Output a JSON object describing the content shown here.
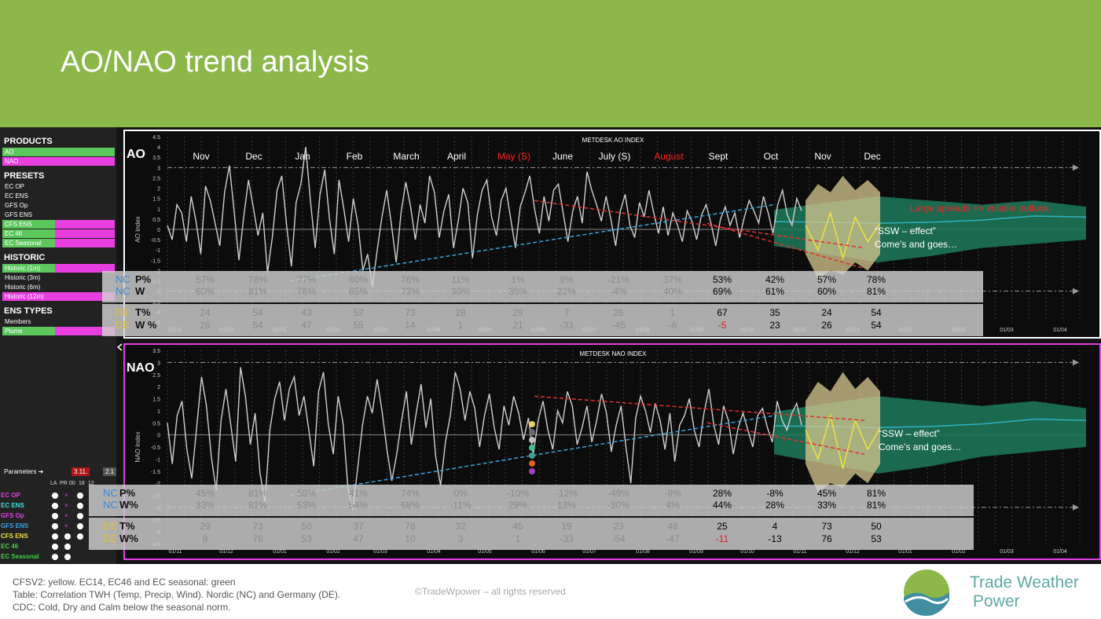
{
  "title": "AO/NAO trend analysis",
  "sidebar": {
    "sections": [
      {
        "label": "PRODUCTS",
        "items": [
          {
            "label": "AO",
            "color": "green"
          },
          {
            "label": "NAO",
            "color": "pink"
          }
        ]
      },
      {
        "label": "PRESETS",
        "items": [
          {
            "label": "EC OP",
            "color": "none"
          },
          {
            "label": "EC ENS",
            "color": "none"
          },
          {
            "label": "GFS Op",
            "color": "none"
          },
          {
            "label": "GFS ENS",
            "color": "none"
          },
          {
            "label": "CFS ENS",
            "color": "green-pink"
          },
          {
            "label": "EC 46",
            "color": "green-pink"
          },
          {
            "label": "EC Seasonal",
            "color": "green-pink"
          }
        ]
      },
      {
        "label": "HISTORIC",
        "items": [
          {
            "label": "Historic (1m)",
            "color": "green-pink"
          },
          {
            "label": "Historic (3m)",
            "color": "none"
          },
          {
            "label": "Historic (6m)",
            "color": "none"
          },
          {
            "label": "Historic (12m)",
            "color": "pink-full"
          }
        ]
      },
      {
        "label": "ENS TYPES",
        "items": [
          {
            "label": "Members",
            "color": "none"
          },
          {
            "label": "Plume",
            "color": "green-pink"
          }
        ]
      }
    ],
    "parameters": {
      "label": "Parameters ➔",
      "date1": "3.11.",
      "date2": "2.1",
      "cols": [
        "LA",
        "PR",
        "00",
        "18",
        "12"
      ],
      "models": [
        {
          "label": "EC OP",
          "color": "#e040e0"
        },
        {
          "label": "EC ENS",
          "color": "#40e0e0"
        },
        {
          "label": "GFS Op",
          "color": "#e040e0"
        },
        {
          "label": "GFS ENS",
          "color": "#40a0e0"
        },
        {
          "label": "CFS ENS",
          "color": "#f0e040"
        },
        {
          "label": "EC 46",
          "color": "#40d040"
        },
        {
          "label": "EC Seasonal",
          "color": "#40d040"
        }
      ]
    }
  },
  "colors": {
    "header": "#8cb84a",
    "line": "#cfcfcf",
    "trend_blue": "#3aa0d8",
    "trend_red": "#e03030",
    "band_green": "#1e7a5a",
    "plume": "#d8c890"
  },
  "chart_data": [
    {
      "type": "line",
      "label": "AO",
      "title": "METDESK AO INDEX",
      "ylabel": "AO Index",
      "ylim": [
        -4.5,
        4.5
      ],
      "yticks": [
        "4.5",
        "4",
        "3.5",
        "3",
        "2.5",
        "2",
        "1.5",
        "1",
        "0.5",
        "0",
        "-0.5",
        "-1",
        "-1.5",
        "-2",
        "-2.5",
        "-3",
        "-3.5",
        "-4",
        "-4.5"
      ],
      "x_ticks": [
        "01/11",
        "01/12",
        "01/01",
        "01/02",
        "01/03",
        "01/04",
        "01/05",
        "01/06",
        "01/07",
        "01/08",
        "01/09",
        "01/10",
        "01/11",
        "01/12",
        "01/01",
        "01/02",
        "01/03",
        "01/04"
      ],
      "months": [
        {
          "label": "Nov",
          "red": false
        },
        {
          "label": "Dec",
          "red": false
        },
        {
          "label": "Jan",
          "red": false
        },
        {
          "label": "Feb",
          "red": false
        },
        {
          "label": "March",
          "red": false
        },
        {
          "label": "April",
          "red": false
        },
        {
          "label": "May (S)",
          "red": true
        },
        {
          "label": "June",
          "red": false
        },
        {
          "label": "July (S)",
          "red": false
        },
        {
          "label": "August",
          "red": true
        },
        {
          "label": "Sept",
          "red": false
        },
        {
          "label": "Oct",
          "red": false
        },
        {
          "label": "Nov",
          "red": false
        },
        {
          "label": "Dec",
          "red": false
        }
      ],
      "series_values": [
        0.2,
        -0.5,
        1.2,
        0.8,
        -0.6,
        1.6,
        0.4,
        -1.2,
        2.1,
        1.4,
        0.3,
        -0.8,
        1.8,
        3.1,
        0.9,
        -1.5,
        0.6,
        2.4,
        1.1,
        -0.3,
        0.8,
        -2.1,
        -0.4,
        1.9,
        2.6,
        0.2,
        -1.8,
        1.3,
        2.2,
        4.0,
        1.4,
        -0.9,
        1.7,
        2.9,
        0.5,
        -1.2,
        2.4,
        1.0,
        -0.6,
        1.5,
        0.2,
        -2.0,
        -1.2,
        -2.8,
        -1.0,
        0.6,
        1.9,
        0.2,
        -1.6,
        0.8,
        2.3,
        1.1,
        -0.5,
        1.2,
        0.3,
        2.6,
        1.8,
        -0.4,
        0.9,
        1.7,
        -0.9,
        0.4,
        2.0,
        1.3,
        -1.4,
        0.7,
        1.9,
        2.4,
        0.6,
        -0.3,
        1.4,
        2.0,
        0.5,
        -0.9,
        1.1,
        1.8,
        2.6,
        1.0,
        -0.2,
        1.6,
        0.4,
        1.9,
        2.2,
        0.8,
        -0.6,
        0.9,
        1.6,
        0.3,
        2.8,
        1.9,
        1.2,
        0.4,
        1.6,
        0.5,
        -0.8,
        0.9,
        1.7,
        0.2,
        -0.4,
        1.3,
        0.6,
        1.9,
        0.8,
        -0.2,
        1.1,
        -0.3,
        0.8,
        0.2,
        -0.6,
        0.9,
        0.4,
        -0.5,
        0.7,
        1.2,
        0.3,
        -0.8,
        0.5,
        1.1,
        0.2,
        0.8,
        -0.4,
        0.6,
        1.4,
        0.9,
        0.3,
        1.6,
        0.8,
        -0.2,
        1.2,
        1.9,
        0.7,
        0.2,
        1.5,
        0.9
      ],
      "trend_blue": [
        [
          -2.5,
          0.35
        ],
        [
          1.2,
          0.78
        ]
      ],
      "trend_red_1": [
        [
          1.4,
          0.68
        ],
        [
          -0.9,
          0.9
        ]
      ],
      "trend_red_2": [
        [
          0.3,
          0.78
        ],
        [
          -1.9,
          0.9
        ]
      ],
      "annotations": [
        "Large spreads => volatile outlook",
        "“SSW – effect”",
        "Come’s and goes…"
      ],
      "table": {
        "rows": [
          {
            "region": "NC",
            "metric": "P%",
            "values": [
              "57%",
              "78%",
              "77%",
              "60%",
              "76%",
              "11%",
              "1%",
              "9%",
              "-21%",
              "37%",
              "53%",
              "42%",
              "57%",
              "78%"
            ]
          },
          {
            "region": "NC",
            "metric": "W",
            "values": [
              "60%",
              "81%",
              "76%",
              "65%",
              "73%",
              "30%",
              "35%",
              "22%",
              "-4%",
              "40%",
              "69%",
              "61%",
              "60%",
              "81%"
            ]
          },
          {
            "region": "DE",
            "metric": "T%",
            "values": [
              "24",
              "54",
              "43",
              "52",
              "73",
              "28",
              "29",
              "7",
              "26",
              "1",
              "67",
              "35",
              "24",
              "54"
            ]
          },
          {
            "region": "DE",
            "metric": "W %",
            "values": [
              "26",
              "54",
              "47",
              "55",
              "14",
              "1",
              "21",
              "-33",
              "-45",
              "-6",
              "-5",
              "23",
              "26",
              "54"
            ]
          }
        ],
        "red_cells": [
          [
            3,
            10
          ]
        ]
      }
    },
    {
      "type": "line",
      "label": "NAO",
      "title": "METDESK NAO INDEX",
      "ylabel": "NAO Index",
      "ylim": [
        -4.5,
        3.5
      ],
      "yticks": [
        "3.5",
        "3",
        "2.5",
        "2",
        "1.5",
        "1",
        "0.5",
        "0",
        "-0.5",
        "-1",
        "-1.5",
        "-2",
        "-2.5",
        "-3",
        "-3.5",
        "-4",
        "-4.5"
      ],
      "x_ticks": [
        "01/11",
        "01/12",
        "01/01",
        "01/02",
        "01/03",
        "01/04",
        "01/05",
        "01/06",
        "01/07",
        "01/08",
        "01/09",
        "01/10",
        "01/11",
        "01/12",
        "01/01",
        "01/02",
        "01/03",
        "01/04"
      ],
      "series_values": [
        0.5,
        -1.2,
        0.8,
        1.4,
        -0.6,
        -1.8,
        0.3,
        2.4,
        1.2,
        -0.9,
        -2.3,
        0.6,
        1.9,
        0.4,
        -1.1,
        2.8,
        1.6,
        -0.4,
        0.9,
        -1.6,
        -2.8,
        0.2,
        1.5,
        2.2,
        0.6,
        1.9,
        2.4,
        0.8,
        1.6,
        0.2,
        -1.3,
        1.8,
        2.6,
        0.4,
        -0.8,
        1.6,
        0.5,
        -2.2,
        -3.1,
        -1.4,
        0.4,
        1.6,
        0.9,
        2.3,
        1.0,
        -0.6,
        -1.9,
        -0.8,
        0.6,
        1.8,
        -0.4,
        0.9,
        2.1,
        0.3,
        1.5,
        -0.9,
        -2.1,
        -0.3,
        0.8,
        2.6,
        1.9,
        0.6,
        1.8,
        1.1,
        -0.5,
        0.8,
        1.7,
        0.3,
        -0.6,
        1.2,
        0.4,
        1.6,
        0.9,
        -0.2,
        0.7,
        -0.8,
        0.6,
        1.4,
        0.2,
        -0.6,
        1.0,
        0.5,
        1.8,
        1.2,
        -0.4,
        0.3,
        1.2,
        -0.3,
        0.6,
        1.7,
        0.9,
        -0.7,
        0.4,
        1.2,
        -0.5,
        -2.0,
        0.7,
        1.6,
        1.0,
        0.1,
        1.3,
        0.6,
        -0.6,
        0.9,
        -1.1,
        0.4,
        0.8,
        1.5,
        0.2,
        -0.5,
        0.9,
        1.9,
        0.4,
        -0.4,
        1.2,
        0.6,
        -0.8,
        0.3,
        0.9,
        0.2,
        -0.5,
        0.8,
        1.1,
        0.3,
        -0.3,
        1.4,
        0.6,
        0.2,
        0.9,
        1.3,
        0.4
      ],
      "trend_blue": [
        [
          -2.5,
          0.33
        ],
        [
          0.8,
          0.79
        ]
      ],
      "trend_red_1": [
        [
          1.6,
          0.68
        ],
        [
          0.6,
          0.9
        ]
      ],
      "trend_red_2": [
        [
          0.5,
          0.68
        ],
        [
          -0.8,
          0.9
        ]
      ],
      "annotations": [
        "“SSW – effect”",
        "Come’s and goes…"
      ],
      "table": {
        "rows": [
          {
            "region": "NC",
            "metric": "P%",
            "values": [
              "45%",
              "81%",
              "58%",
              "41%",
              "74%",
              "0%",
              "-10%",
              "-12%",
              "-49%",
              "-9%",
              "28%",
              "-8%",
              "45%",
              "81%"
            ]
          },
          {
            "region": "NC",
            "metric": "W%",
            "values": [
              "33%",
              "81%",
              "53%",
              "54%",
              "68%",
              "-11%",
              "29%",
              "13%",
              "-30%",
              "4%",
              "44%",
              "28%",
              "33%",
              "81%"
            ]
          },
          {
            "region": "DE",
            "metric": "T%",
            "values": [
              "29",
              "73",
              "50",
              "37",
              "78",
              "32",
              "45",
              "19",
              "23",
              "48",
              "25",
              "4",
              "73",
              "50"
            ]
          },
          {
            "region": "DE",
            "metric": "W%",
            "values": [
              "9",
              "76",
              "53",
              "47",
              "10",
              "3",
              "1",
              "-33",
              "-54",
              "-47",
              "-11",
              "-13",
              "76",
              "53"
            ]
          }
        ],
        "red_cells": [
          [
            3,
            10
          ]
        ]
      }
    }
  ],
  "footer": {
    "line1": "CFSV2: yellow. EC14, EC46 and EC seasonal: green",
    "line2": "Table: Correlation TWH (Temp, Precip, Wind). Nordic (NC) and Germany (DE).",
    "line3": "CDC: Cold, Dry and Calm below the seasonal norm.",
    "copyright": "©TradeWpower – all rights reserved",
    "brand_line1": "Trade Weather",
    "brand_line2": "Power"
  }
}
